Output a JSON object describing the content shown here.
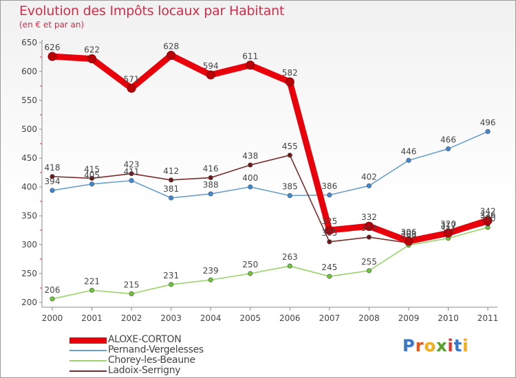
{
  "title": "Evolution des Impôts locaux par Habitant",
  "subtitle": "(en € et par an)",
  "logo": {
    "text": "Proxiti",
    "letter_colors": [
      "#3a78c8",
      "#e35a1e",
      "#f2b01e",
      "#5aa02c",
      "#d43a2e",
      "#3a78c8",
      "#f2b01e"
    ]
  },
  "chart_data": {
    "type": "line",
    "title": "Evolution des Impôts locaux par Habitant",
    "subtitle": "(en € et par an)",
    "categories": [
      "2000",
      "2001",
      "2002",
      "2003",
      "2004",
      "2005",
      "2006",
      "2007",
      "2008",
      "2009",
      "2010",
      "2011"
    ],
    "ylim": [
      200,
      650
    ],
    "yticks": [
      200,
      250,
      300,
      350,
      400,
      450,
      500,
      550,
      600,
      650
    ],
    "grid": false,
    "legend_position": "bottom-left",
    "series": [
      {
        "name": "ALOXE-CORTON",
        "color": "#e8000b",
        "marker": "#b80008",
        "emphasis": true,
        "values": [
          626,
          622,
          571,
          628,
          594,
          611,
          582,
          325,
          332,
          306,
          320,
          342
        ]
      },
      {
        "name": "Pernand-Vergelesses",
        "color": "#6a9fcd",
        "marker": "#3f87cf",
        "emphasis": false,
        "values": [
          394,
          405,
          411,
          381,
          388,
          400,
          385,
          386,
          402,
          446,
          466,
          496
        ]
      },
      {
        "name": "Chorey-les-Beaune",
        "color": "#9ad36a",
        "marker": "#6fc23c",
        "emphasis": false,
        "values": [
          206,
          221,
          215,
          231,
          239,
          250,
          263,
          245,
          255,
          299,
          311,
          330
        ]
      },
      {
        "name": "Ladoix-Serrigny",
        "color": "#7a2a2a",
        "marker": "#6a1a1a",
        "emphasis": false,
        "values": [
          418,
          415,
          423,
          412,
          416,
          438,
          455,
          305,
          313,
          303,
          317,
          336
        ]
      }
    ]
  }
}
